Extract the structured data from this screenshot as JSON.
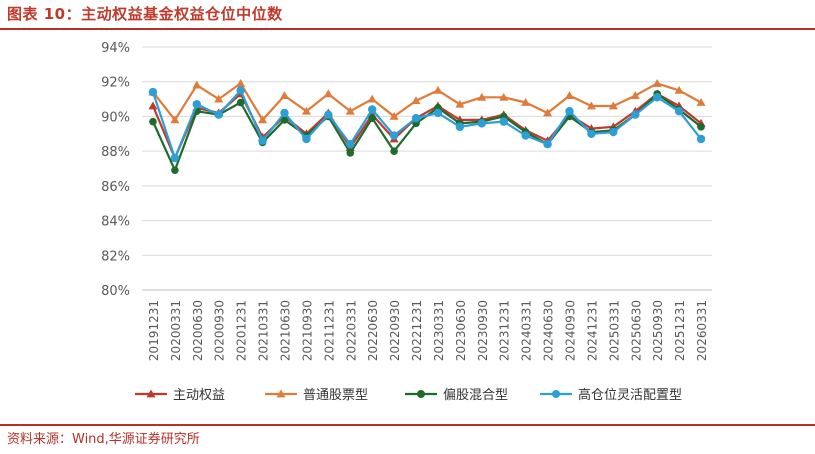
{
  "header": {
    "title": "图表 10：主动权益基金权益仓位中位数"
  },
  "footer": {
    "source": "资料来源：Wind,华源证券研究所"
  },
  "colors": {
    "accent": "#b7302a"
  },
  "chart_data": {
    "type": "line",
    "title": "",
    "xlabel": "",
    "ylabel": "",
    "ylim": [
      80,
      94
    ],
    "yticks": [
      "80%",
      "82%",
      "84%",
      "86%",
      "88%",
      "90%",
      "92%",
      "94%"
    ],
    "grid": true,
    "legend_position": "bottom",
    "categories": [
      "20191231",
      "20200331",
      "20200630",
      "20200930",
      "20201231",
      "20210331",
      "20210630",
      "20210930",
      "20211231",
      "20220331",
      "20220630",
      "20220930",
      "20221231",
      "20230331",
      "20230630",
      "20230930",
      "20231231",
      "20240331",
      "20240630",
      "20240930",
      "20241231",
      "20250331",
      "20250630",
      "20250930",
      "20251231",
      "20260331"
    ],
    "series": [
      {
        "name": "主动权益",
        "color": "#c0392b",
        "marker": "triangle",
        "values": [
          90.6,
          87.6,
          90.5,
          90.2,
          91.3,
          88.8,
          90.0,
          89.0,
          90.2,
          88.2,
          90.1,
          88.7,
          89.9,
          90.6,
          89.8,
          89.8,
          90.1,
          89.2,
          88.6,
          90.1,
          89.3,
          89.4,
          90.3,
          91.3,
          90.6,
          89.6
        ]
      },
      {
        "name": "普通股票型",
        "color": "#e07b39",
        "marker": "triangle",
        "values": [
          91.4,
          89.8,
          91.8,
          91.0,
          91.9,
          89.8,
          91.2,
          90.3,
          91.3,
          90.3,
          91.0,
          90.0,
          90.9,
          91.5,
          90.7,
          91.1,
          91.1,
          90.8,
          90.2,
          91.2,
          90.6,
          90.6,
          91.2,
          91.9,
          91.5,
          90.8
        ]
      },
      {
        "name": "偏股混合型",
        "color": "#1e6b2e",
        "marker": "circle",
        "values": [
          89.7,
          86.9,
          90.3,
          90.1,
          90.8,
          88.5,
          89.8,
          88.9,
          90.0,
          87.9,
          89.9,
          88.0,
          89.6,
          90.5,
          89.6,
          89.7,
          90.0,
          89.1,
          88.4,
          90.0,
          89.1,
          89.2,
          90.1,
          91.3,
          90.4,
          89.4
        ]
      },
      {
        "name": "高仓位灵活配置型",
        "color": "#2c9fd6",
        "marker": "circle",
        "values": [
          91.4,
          87.6,
          90.7,
          90.1,
          91.5,
          88.6,
          90.2,
          88.7,
          90.1,
          88.4,
          90.4,
          88.9,
          89.9,
          90.2,
          89.4,
          89.6,
          89.7,
          88.9,
          88.4,
          90.3,
          89.0,
          89.1,
          90.1,
          91.1,
          90.3,
          88.7
        ]
      }
    ]
  }
}
